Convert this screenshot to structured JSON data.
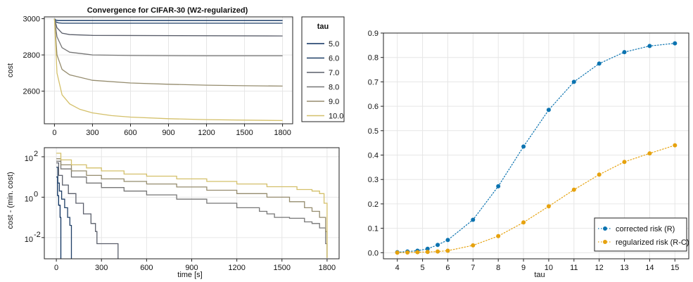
{
  "chart_data": [
    {
      "type": "line",
      "title": "Convergence for CIFAR-30 (W2-regularized)",
      "xlabel": "",
      "ylabel": "cost",
      "xlim": [
        -80,
        1880
      ],
      "ylim": [
        2420,
        3010
      ],
      "xticks": [
        0,
        300,
        600,
        900,
        1200,
        1500,
        1800
      ],
      "yticks": [
        2600,
        2800,
        3000
      ],
      "grid": true,
      "legend": {
        "title": "tau",
        "placement": "right"
      },
      "series": [
        {
          "name": "5.0",
          "color": "#0b2f5e",
          "x": [
            0,
            10,
            30,
            60,
            1800
          ],
          "y": [
            3000,
            2992,
            2990,
            2990,
            2990
          ]
        },
        {
          "name": "6.0",
          "color": "#1f3f66",
          "x": [
            0,
            10,
            30,
            60,
            1800
          ],
          "y": [
            3000,
            2983,
            2977,
            2975,
            2975
          ]
        },
        {
          "name": "7.0",
          "color": "#5a5e6a",
          "x": [
            0,
            20,
            60,
            120,
            300,
            1800
          ],
          "y": [
            3000,
            2950,
            2920,
            2912,
            2908,
            2905
          ]
        },
        {
          "name": "8.0",
          "color": "#767676",
          "x": [
            0,
            20,
            60,
            120,
            300,
            600,
            1200,
            1800
          ],
          "y": [
            3000,
            2900,
            2840,
            2815,
            2800,
            2797,
            2795,
            2795
          ]
        },
        {
          "name": "9.0",
          "color": "#958c6e",
          "x": [
            0,
            20,
            60,
            120,
            300,
            600,
            900,
            1200,
            1500,
            1800
          ],
          "y": [
            3000,
            2800,
            2720,
            2690,
            2660,
            2645,
            2638,
            2633,
            2630,
            2628
          ]
        },
        {
          "name": "10.0",
          "color": "#d4c06a",
          "x": [
            0,
            20,
            60,
            120,
            200,
            300,
            450,
            600,
            900,
            1200,
            1500,
            1800
          ],
          "y": [
            3000,
            2700,
            2580,
            2530,
            2500,
            2480,
            2465,
            2457,
            2448,
            2443,
            2440,
            2438
          ]
        }
      ]
    },
    {
      "type": "line",
      "title": "",
      "xlabel": "time [s]",
      "ylabel": "cost - (min. cost)",
      "log_y": true,
      "xlim": [
        -80,
        1880
      ],
      "ylim_log10": [
        -3.05,
        2.45
      ],
      "xticks": [
        0,
        300,
        600,
        900,
        1200,
        1500,
        1800
      ],
      "yticks": [
        0.01,
        1,
        100
      ],
      "ytick_labels": [
        "10",
        "10",
        "10"
      ],
      "ytick_exponents": [
        "-2",
        "0",
        "2"
      ],
      "grid": true,
      "series": [
        {
          "name": "5.0",
          "color": "#0b2f5e",
          "x": [
            0,
            8,
            15,
            25,
            30,
            30.1
          ],
          "y": [
            10,
            1.2,
            0.4,
            0.1,
            0.05,
            0.0009
          ]
        },
        {
          "name": "6.0",
          "color": "#1f3f66",
          "x": [
            0,
            10,
            20,
            35,
            55,
            75,
            90,
            100,
            100.1
          ],
          "y": [
            30,
            5,
            2,
            0.8,
            0.3,
            0.1,
            0.04,
            0.02,
            0.0009
          ]
        },
        {
          "name": "7.0",
          "color": "#5a5e6a",
          "x": [
            0,
            15,
            40,
            80,
            130,
            180,
            230,
            260,
            270,
            410,
            410.1
          ],
          "y": [
            50,
            12,
            4,
            1.5,
            0.5,
            0.15,
            0.05,
            0.02,
            0.005,
            0.005,
            0.0009
          ]
        },
        {
          "name": "8.0",
          "color": "#767676",
          "x": [
            0,
            30,
            100,
            200,
            300,
            450,
            600,
            800,
            1000,
            1200,
            1350,
            1400,
            1450,
            1550,
            1650,
            1700,
            1750,
            1790,
            1800
          ],
          "y": [
            60,
            25,
            10,
            5,
            3,
            2,
            1.3,
            0.8,
            0.5,
            0.3,
            0.2,
            0.15,
            0.1,
            0.09,
            0.06,
            0.05,
            0.03,
            0.005,
            0.001
          ]
        },
        {
          "name": "9.0",
          "color": "#958c6e",
          "x": [
            0,
            30,
            100,
            200,
            300,
            450,
            600,
            800,
            1000,
            1200,
            1400,
            1550,
            1650,
            1700,
            1750,
            1790,
            1800
          ],
          "y": [
            80,
            40,
            20,
            12,
            8,
            6,
            4.5,
            3.2,
            2.2,
            1.5,
            1,
            0.6,
            0.3,
            0.2,
            0.1,
            0.02,
            0.001
          ]
        },
        {
          "name": "10.0",
          "color": "#d4c06a",
          "x": [
            0,
            30,
            100,
            200,
            300,
            450,
            600,
            800,
            1000,
            1200,
            1400,
            1600,
            1700,
            1750,
            1780,
            1800,
            1800.1
          ],
          "y": [
            150,
            70,
            40,
            28,
            20,
            14,
            11,
            8,
            6,
            4.5,
            3.3,
            2.4,
            2,
            1.5,
            0.5,
            0.05,
            0.001
          ]
        }
      ]
    },
    {
      "type": "line",
      "title": "",
      "xlabel": "tau",
      "ylabel": "",
      "xlim": [
        3.45,
        15.55
      ],
      "ylim": [
        -0.025,
        0.9
      ],
      "xticks": [
        4,
        5,
        6,
        7,
        8,
        9,
        10,
        11,
        12,
        13,
        14,
        15
      ],
      "yticks": [
        0.0,
        0.1,
        0.2,
        0.3,
        0.4,
        0.5,
        0.6,
        0.7,
        0.8,
        0.9
      ],
      "ytick_labels": [
        "0.0",
        "0.1",
        "0.2",
        "0.3",
        "0.4",
        "0.5",
        "0.6",
        "0.7",
        "0.8",
        "0.9"
      ],
      "grid": true,
      "legend": {
        "placement": "bottom-right"
      },
      "series": [
        {
          "name": "corrected risk (R)",
          "color": "#0b73b0",
          "x": [
            4,
            4.4,
            4.8,
            5.2,
            5.6,
            6,
            7,
            8,
            9,
            10,
            11,
            12,
            13,
            14,
            15
          ],
          "y": [
            0.002,
            0.005,
            0.008,
            0.016,
            0.032,
            0.052,
            0.135,
            0.272,
            0.435,
            0.585,
            0.7,
            0.775,
            0.822,
            0.847,
            0.858
          ]
        },
        {
          "name": "regularized risk (R-C)",
          "color": "#e6a20e",
          "x": [
            4,
            4.4,
            4.8,
            5.2,
            5.6,
            6,
            7,
            8,
            9,
            10,
            11,
            12,
            13,
            14,
            15
          ],
          "y": [
            0.0,
            0.001,
            0.002,
            0.003,
            0.005,
            0.008,
            0.03,
            0.068,
            0.124,
            0.19,
            0.258,
            0.32,
            0.372,
            0.407,
            0.44
          ]
        }
      ]
    }
  ]
}
